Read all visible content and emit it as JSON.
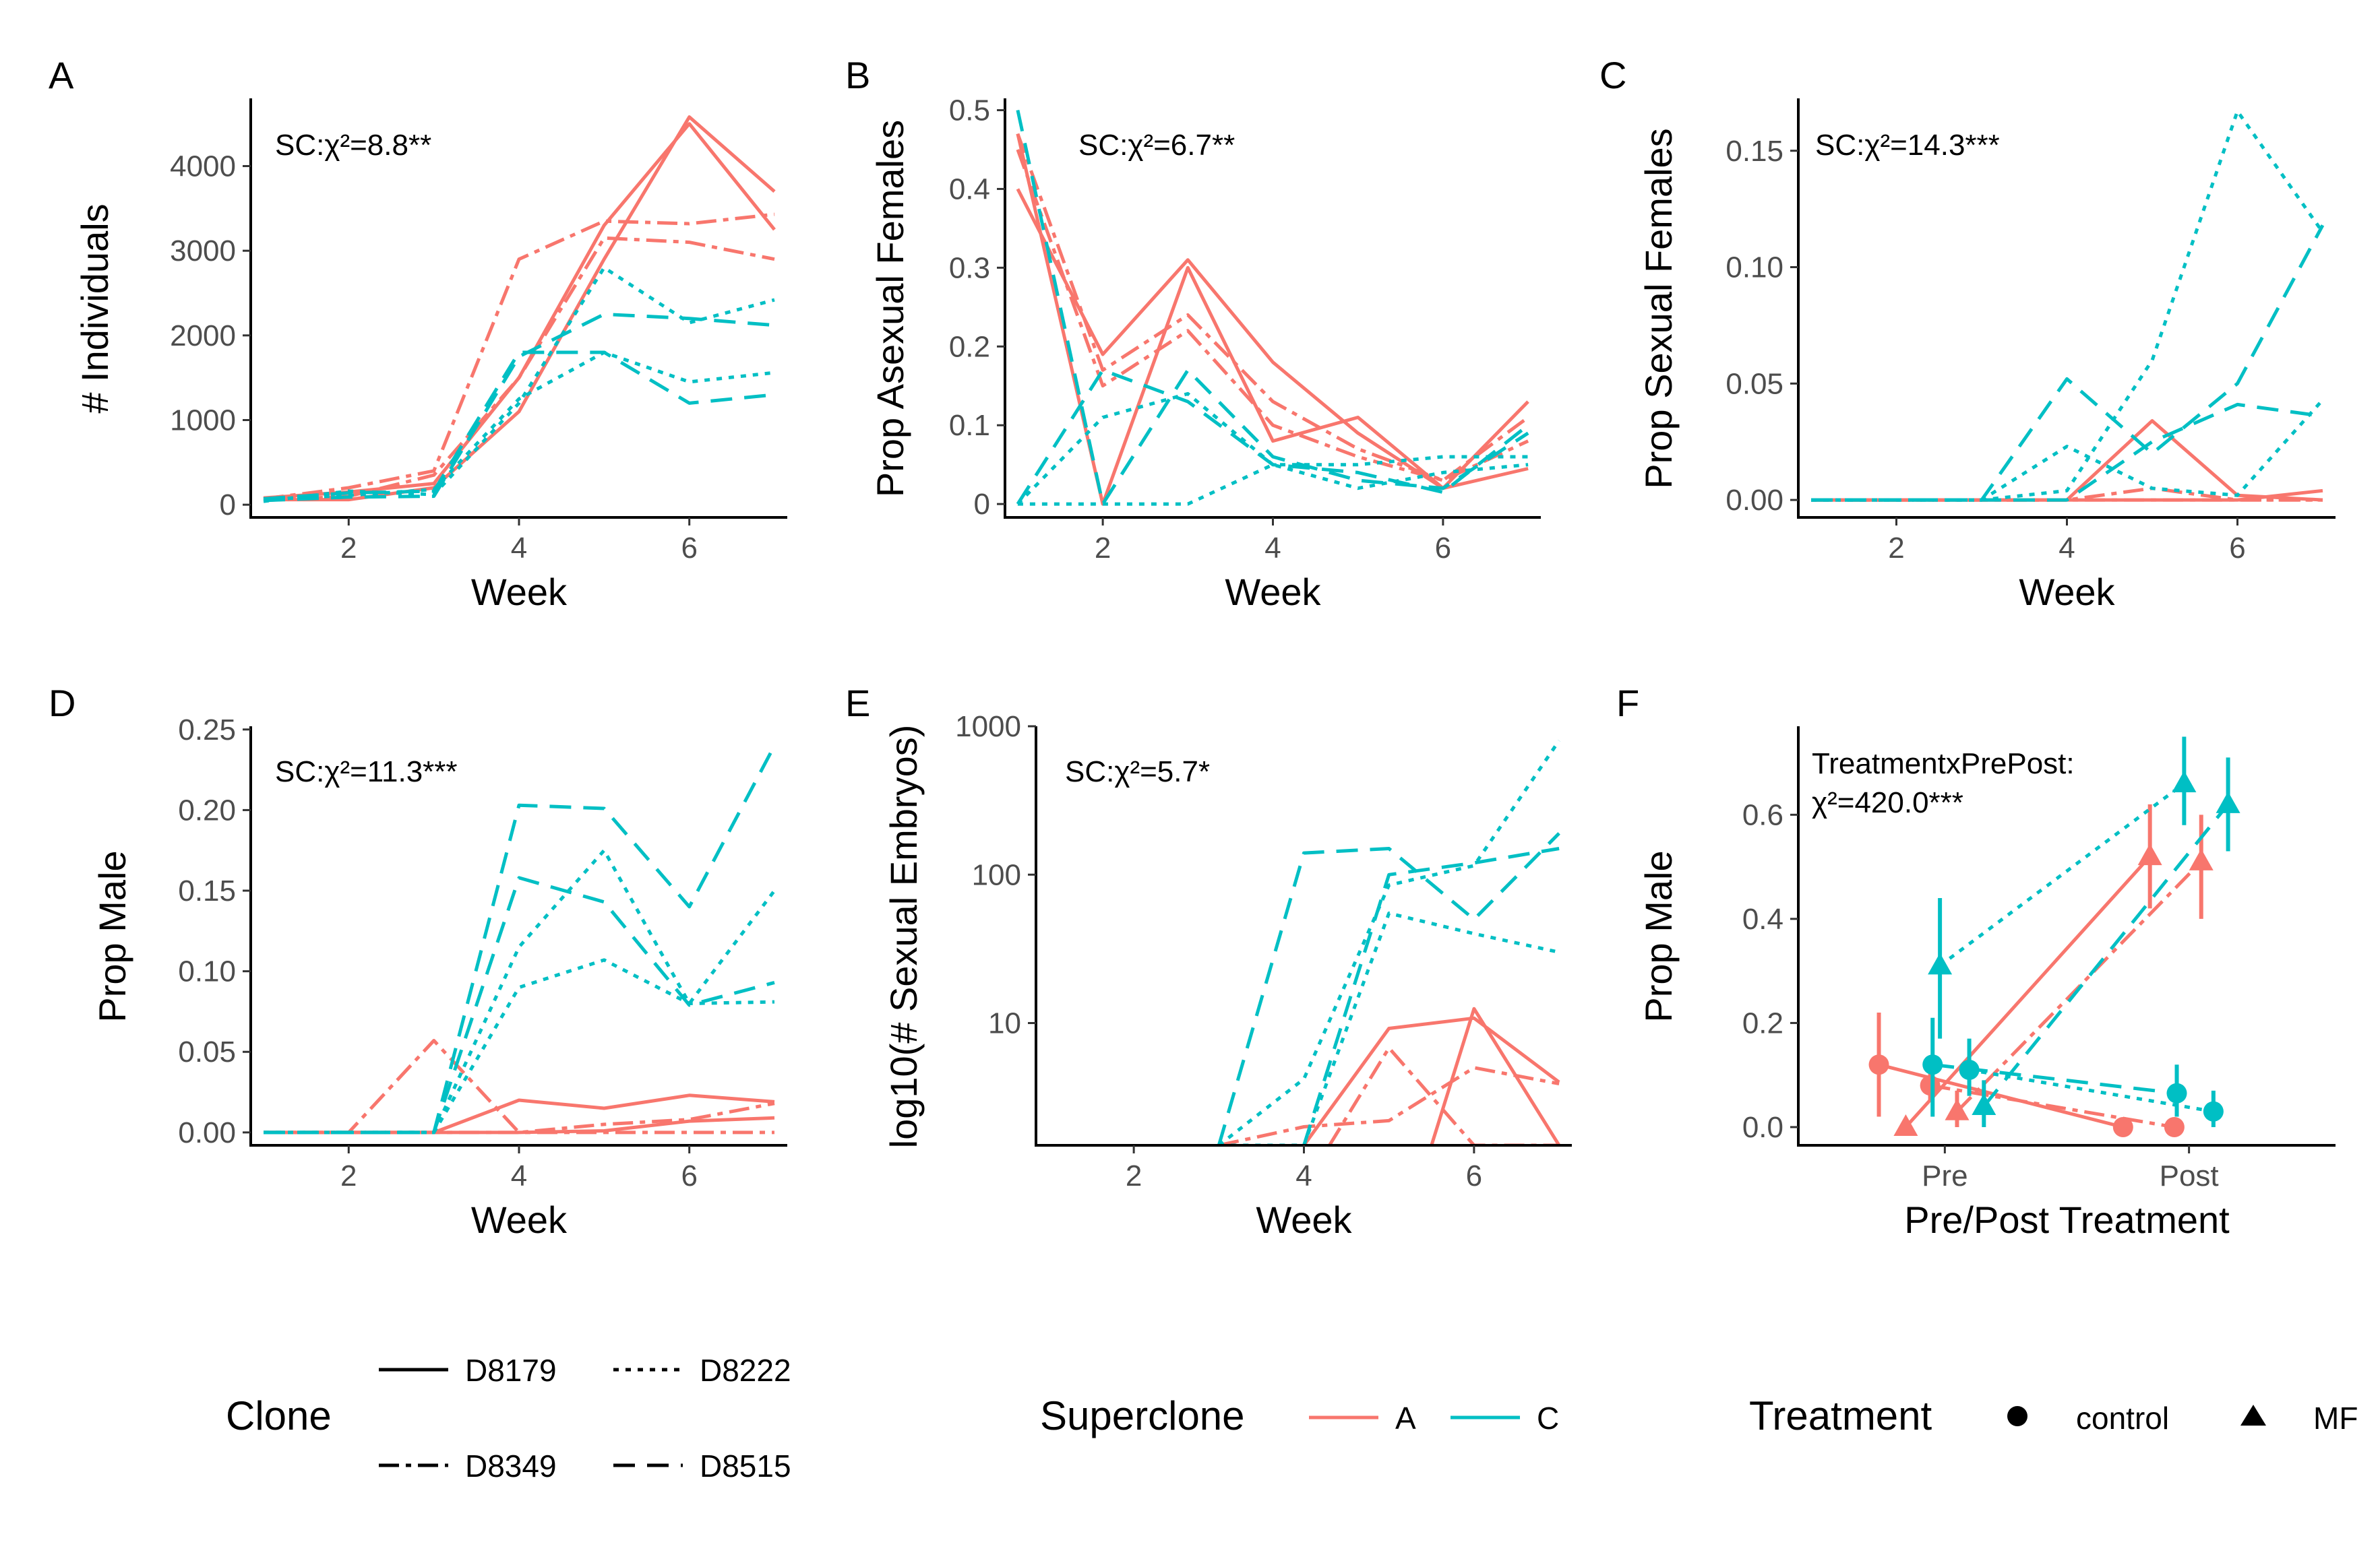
{
  "colors": {
    "A": "#F8766D",
    "C": "#00BFC4"
  },
  "chart_data": [
    {
      "panel": "A",
      "type": "line",
      "stat": "SC:χ²=8.8**",
      "xlabel": "Week",
      "ylabel": "# Individuals",
      "xlim": [
        0.85,
        7.15
      ],
      "ylim": [
        -150,
        4800
      ],
      "xticks": [
        2,
        4,
        6
      ],
      "yticks": [
        0,
        1000,
        2000,
        3000,
        4000
      ],
      "series": [
        {
          "superclone": "A",
          "clone": "D8179",
          "x": [
            1,
            2,
            3,
            4,
            5,
            6,
            7
          ],
          "y": [
            60,
            60,
            200,
            1100,
            2900,
            4580,
            3700
          ]
        },
        {
          "superclone": "A",
          "clone": "D8179",
          "x": [
            1,
            2,
            3,
            4,
            5,
            6,
            7
          ],
          "y": [
            80,
            150,
            250,
            1500,
            3300,
            4500,
            3250
          ]
        },
        {
          "superclone": "A",
          "clone": "D8349",
          "x": [
            1,
            2,
            3,
            4,
            5,
            6,
            7
          ],
          "y": [
            70,
            200,
            400,
            2900,
            3350,
            3320,
            3430
          ]
        },
        {
          "superclone": "A",
          "clone": "D8349",
          "x": [
            1,
            2,
            3,
            4,
            5,
            6,
            7
          ],
          "y": [
            50,
            100,
            350,
            1500,
            3150,
            3100,
            2900
          ]
        },
        {
          "superclone": "C",
          "clone": "D8222",
          "x": [
            1,
            2,
            3,
            4,
            5,
            6,
            7
          ],
          "y": [
            40,
            160,
            120,
            1200,
            2800,
            2150,
            2420
          ]
        },
        {
          "superclone": "C",
          "clone": "D8222",
          "x": [
            1,
            2,
            3,
            4,
            5,
            6,
            7
          ],
          "y": [
            60,
            110,
            180,
            1250,
            1800,
            1450,
            1560
          ]
        },
        {
          "superclone": "C",
          "clone": "D8515",
          "x": [
            1,
            2,
            3,
            4,
            5,
            6,
            7
          ],
          "y": [
            50,
            90,
            100,
            1750,
            2250,
            2200,
            2120
          ]
        },
        {
          "superclone": "C",
          "clone": "D8515",
          "x": [
            1,
            2,
            3,
            4,
            5,
            6,
            7
          ],
          "y": [
            70,
            140,
            160,
            1800,
            1800,
            1200,
            1300
          ]
        }
      ]
    },
    {
      "panel": "B",
      "type": "line",
      "stat": "SC:χ²=6.7**",
      "xlabel": "Week",
      "ylabel": "Prop Asexual Females",
      "xlim": [
        0.85,
        7.15
      ],
      "ylim": [
        -0.017,
        0.515
      ],
      "xticks": [
        2,
        4,
        6
      ],
      "yticks": [
        0.0,
        0.1,
        0.2,
        0.3,
        0.4,
        0.5
      ],
      "series": [
        {
          "superclone": "A",
          "clone": "D8179",
          "x": [
            1,
            2,
            3,
            4,
            5,
            6,
            7
          ],
          "y": [
            0.4,
            0.19,
            0.31,
            0.18,
            0.09,
            0.02,
            0.13
          ]
        },
        {
          "superclone": "A",
          "clone": "D8179",
          "x": [
            1,
            2,
            3,
            4,
            5,
            6,
            7
          ],
          "y": [
            0.47,
            0.0,
            0.3,
            0.08,
            0.11,
            0.02,
            0.045
          ]
        },
        {
          "superclone": "A",
          "clone": "D8349",
          "x": [
            1,
            2,
            3,
            4,
            5,
            6,
            7
          ],
          "y": [
            0.47,
            0.17,
            0.24,
            0.13,
            0.07,
            0.03,
            0.11
          ]
        },
        {
          "superclone": "A",
          "clone": "D8349",
          "x": [
            1,
            2,
            3,
            4,
            5,
            6,
            7
          ],
          "y": [
            0.45,
            0.15,
            0.22,
            0.1,
            0.06,
            0.03,
            0.08
          ]
        },
        {
          "superclone": "C",
          "clone": "D8222",
          "x": [
            1,
            2,
            3,
            4,
            5,
            6,
            7
          ],
          "y": [
            0.0,
            0.11,
            0.14,
            0.05,
            0.05,
            0.06,
            0.06
          ]
        },
        {
          "superclone": "C",
          "clone": "D8222",
          "x": [
            1,
            2,
            3,
            4,
            5,
            6,
            7
          ],
          "y": [
            0.0,
            0.0,
            0.0,
            0.05,
            0.02,
            0.04,
            0.05
          ]
        },
        {
          "superclone": "C",
          "clone": "D8515",
          "x": [
            1,
            2,
            3,
            4,
            5,
            6,
            7
          ],
          "y": [
            0.5,
            0.0,
            0.17,
            0.06,
            0.03,
            0.02,
            0.09
          ]
        },
        {
          "superclone": "C",
          "clone": "D8515",
          "x": [
            1,
            2,
            3,
            4,
            5,
            6,
            7
          ],
          "y": [
            0.0,
            0.17,
            0.13,
            0.05,
            0.04,
            0.015,
            0.1
          ]
        }
      ]
    },
    {
      "panel": "C",
      "type": "line",
      "stat": "SC:χ²=14.3***",
      "xlabel": "Week",
      "ylabel": "Prop Sexual Females",
      "xlim": [
        0.85,
        7.15
      ],
      "ylim": [
        -0.0075,
        0.1725
      ],
      "xticks": [
        2,
        4,
        6
      ],
      "yticks": [
        0.0,
        0.05,
        0.1,
        0.15
      ],
      "ytick_labels": [
        "0.00",
        "0.05",
        "0.10",
        "0.15"
      ],
      "series": [
        {
          "superclone": "A",
          "clone": "D8179",
          "x": [
            1,
            2,
            3,
            4,
            5,
            6,
            7
          ],
          "y": [
            0,
            0,
            0,
            0,
            0.034,
            0.002,
            0
          ]
        },
        {
          "superclone": "A",
          "clone": "D8179",
          "x": [
            1,
            2,
            3,
            4,
            5,
            6,
            7
          ],
          "y": [
            0,
            0,
            0,
            0,
            0,
            0,
            0.004
          ]
        },
        {
          "superclone": "A",
          "clone": "D8349",
          "x": [
            1,
            2,
            3,
            4,
            5,
            6,
            7
          ],
          "y": [
            0,
            0,
            0,
            0,
            0.005,
            0,
            0
          ]
        },
        {
          "superclone": "A",
          "clone": "D8349",
          "x": [
            1,
            2,
            3,
            4,
            5,
            6,
            7
          ],
          "y": [
            0,
            0,
            0,
            0,
            0,
            0,
            0
          ]
        },
        {
          "superclone": "C",
          "clone": "D8222",
          "x": [
            1,
            2,
            3,
            4,
            5,
            6,
            7
          ],
          "y": [
            0,
            0,
            0,
            0.004,
            0.06,
            0.167,
            0.115
          ]
        },
        {
          "superclone": "C",
          "clone": "D8222",
          "x": [
            1,
            2,
            3,
            4,
            5,
            6,
            7
          ],
          "y": [
            0,
            0,
            0,
            0.023,
            0.005,
            0.002,
            0.043
          ]
        },
        {
          "superclone": "C",
          "clone": "D8515",
          "x": [
            1,
            2,
            3,
            4,
            5,
            6,
            7
          ],
          "y": [
            0,
            0,
            0,
            0.052,
            0.02,
            0.05,
            0.118
          ]
        },
        {
          "superclone": "C",
          "clone": "D8515",
          "x": [
            1,
            2,
            3,
            4,
            5,
            6,
            7
          ],
          "y": [
            0,
            0,
            0,
            0,
            0.025,
            0.041,
            0.036
          ]
        }
      ]
    },
    {
      "panel": "D",
      "type": "line",
      "stat": "SC:χ²=11.3***",
      "xlabel": "Week",
      "ylabel": "Prop Male",
      "xlim": [
        0.85,
        7.15
      ],
      "ylim": [
        -0.008,
        0.252
      ],
      "xticks": [
        2,
        4,
        6
      ],
      "yticks": [
        0.0,
        0.05,
        0.1,
        0.15,
        0.2,
        0.25
      ],
      "ytick_labels": [
        "0.00",
        "0.05",
        "0.10",
        "0.15",
        "0.20",
        "0.25"
      ],
      "series": [
        {
          "superclone": "A",
          "clone": "D8179",
          "x": [
            1,
            2,
            3,
            4,
            5,
            6,
            7
          ],
          "y": [
            0,
            0,
            0,
            0.02,
            0.015,
            0.023,
            0.019
          ]
        },
        {
          "superclone": "A",
          "clone": "D8179",
          "x": [
            1,
            2,
            3,
            4,
            5,
            6,
            7
          ],
          "y": [
            0,
            0,
            0,
            0,
            0.001,
            0.007,
            0.009
          ]
        },
        {
          "superclone": "A",
          "clone": "D8349",
          "x": [
            1,
            2,
            3,
            4,
            5,
            6,
            7
          ],
          "y": [
            0,
            0,
            0.057,
            0,
            0.005,
            0.008,
            0.018
          ]
        },
        {
          "superclone": "A",
          "clone": "D8349",
          "x": [
            1,
            2,
            3,
            4,
            5,
            6,
            7
          ],
          "y": [
            0,
            0,
            0,
            0,
            0,
            0,
            0
          ]
        },
        {
          "superclone": "C",
          "clone": "D8222",
          "x": [
            1,
            2,
            3,
            4,
            5,
            6,
            7
          ],
          "y": [
            0,
            0,
            0,
            0.115,
            0.175,
            0.08,
            0.15
          ]
        },
        {
          "superclone": "C",
          "clone": "D8222",
          "x": [
            1,
            2,
            3,
            4,
            5,
            6,
            7
          ],
          "y": [
            0,
            0,
            0,
            0.09,
            0.107,
            0.08,
            0.081
          ]
        },
        {
          "superclone": "C",
          "clone": "D8515",
          "x": [
            1,
            2,
            3,
            4,
            5,
            6,
            7
          ],
          "y": [
            0,
            0,
            0,
            0.203,
            0.201,
            0.14,
            0.24
          ]
        },
        {
          "superclone": "C",
          "clone": "D8515",
          "x": [
            1,
            2,
            3,
            4,
            5,
            6,
            7
          ],
          "y": [
            0,
            0,
            0,
            0.158,
            0.143,
            0.079,
            0.093
          ]
        }
      ]
    },
    {
      "panel": "E",
      "type": "line",
      "stat": "SC:χ²=5.7*",
      "xlabel": "Week",
      "ylabel": "log10(# Sexual Embryos)",
      "scale": "log10",
      "xlim": [
        0.85,
        7.15
      ],
      "ylim": [
        1.5,
        1000
      ],
      "xticks": [
        2,
        4,
        6
      ],
      "yticks": [
        10,
        100,
        1000
      ],
      "series": [
        {
          "superclone": "A",
          "clone": "D8179",
          "x": [
            4,
            5,
            6,
            7
          ],
          "y": [
            1.5,
            9.2,
            10.8,
            4.0
          ]
        },
        {
          "superclone": "A",
          "clone": "D8179",
          "x": [
            5.5,
            6,
            7
          ],
          "y": [
            1.5,
            12.5,
            1.5
          ]
        },
        {
          "superclone": "A",
          "clone": "D8349",
          "x": [
            4.3,
            5,
            6,
            7
          ],
          "y": [
            1.5,
            6.8,
            1.5,
            1.5
          ]
        },
        {
          "superclone": "A",
          "clone": "D8349",
          "x": [
            3,
            4,
            5,
            6,
            7
          ],
          "y": [
            1.5,
            2.0,
            2.2,
            5.0,
            3.9
          ]
        },
        {
          "superclone": "C",
          "clone": "D8222",
          "x": [
            3,
            4,
            5,
            6,
            7
          ],
          "y": [
            1.5,
            4.2,
            85,
            115,
            800
          ]
        },
        {
          "superclone": "C",
          "clone": "D8222",
          "x": [
            3,
            4,
            5,
            6,
            7
          ],
          "y": [
            1.5,
            1.5,
            55,
            40,
            30
          ]
        },
        {
          "superclone": "C",
          "clone": "D8515",
          "x": [
            3,
            4,
            5,
            6,
            7
          ],
          "y": [
            1.5,
            140,
            150,
            50,
            190
          ]
        },
        {
          "superclone": "C",
          "clone": "D8515",
          "x": [
            4,
            5,
            6,
            7
          ],
          "y": [
            1.5,
            100,
            120,
            150
          ]
        }
      ]
    },
    {
      "panel": "F",
      "type": "scatter",
      "stat_line1": "TreatmentxPrePost:",
      "stat_line2": "χ²=420.0***",
      "xlabel": "Pre/Post Treatment",
      "ylabel": "Prop Male",
      "categories": [
        "Pre",
        "Post"
      ],
      "ylim": [
        -0.035,
        0.77
      ],
      "yticks": [
        0.0,
        0.2,
        0.4,
        0.6
      ],
      "ytick_labels": [
        "0.0",
        "0.2",
        "0.4",
        "0.6"
      ],
      "points": [
        {
          "superclone": "A",
          "treatment": "control",
          "clone": "D8179",
          "pre": {
            "y": 0.12,
            "lo": 0.02,
            "hi": 0.22
          },
          "post": {
            "y": 0.0,
            "lo": 0.0,
            "hi": 0.0
          },
          "offset": -0.27
        },
        {
          "superclone": "A",
          "treatment": "control",
          "clone": "D8349",
          "pre": {
            "y": 0.08,
            "lo": 0.05,
            "hi": 0.11
          },
          "post": {
            "y": 0.0,
            "lo": 0.0,
            "hi": 0.0
          },
          "offset": -0.06
        },
        {
          "superclone": "A",
          "treatment": "MF",
          "clone": "D8179",
          "pre": {
            "y": 0.0,
            "lo": 0.0,
            "hi": 0.0
          },
          "post": {
            "y": 0.52,
            "lo": 0.42,
            "hi": 0.62
          },
          "offset": -0.16
        },
        {
          "superclone": "A",
          "treatment": "MF",
          "clone": "D8349",
          "pre": {
            "y": 0.03,
            "lo": 0.0,
            "hi": 0.07
          },
          "post": {
            "y": 0.51,
            "lo": 0.4,
            "hi": 0.6
          },
          "offset": 0.05
        },
        {
          "superclone": "C",
          "treatment": "control",
          "clone": "D8222",
          "pre": {
            "y": 0.11,
            "lo": 0.06,
            "hi": 0.17
          },
          "post": {
            "y": 0.03,
            "lo": 0.0,
            "hi": 0.07
          },
          "offset": 0.1
        },
        {
          "superclone": "C",
          "treatment": "control",
          "clone": "D8515",
          "pre": {
            "y": 0.12,
            "lo": 0.02,
            "hi": 0.21
          },
          "post": {
            "y": 0.065,
            "lo": 0.02,
            "hi": 0.12
          },
          "offset": -0.05
        },
        {
          "superclone": "C",
          "treatment": "MF",
          "clone": "D8222",
          "pre": {
            "y": 0.31,
            "lo": 0.17,
            "hi": 0.44
          },
          "post": {
            "y": 0.66,
            "lo": 0.58,
            "hi": 0.75
          },
          "offset": -0.02
        },
        {
          "superclone": "C",
          "treatment": "MF",
          "clone": "D8515",
          "pre": {
            "y": 0.04,
            "lo": 0.0,
            "hi": 0.09
          },
          "post": {
            "y": 0.62,
            "lo": 0.53,
            "hi": 0.71
          },
          "offset": 0.16
        }
      ]
    }
  ],
  "legends": {
    "clone": {
      "title": "Clone",
      "items": [
        "D8179",
        "D8222",
        "D8349",
        "D8515"
      ]
    },
    "superclone": {
      "title": "Superclone",
      "items": [
        "A",
        "C"
      ]
    },
    "treatment": {
      "title": "Treatment",
      "items": [
        "control",
        "MF"
      ]
    }
  }
}
